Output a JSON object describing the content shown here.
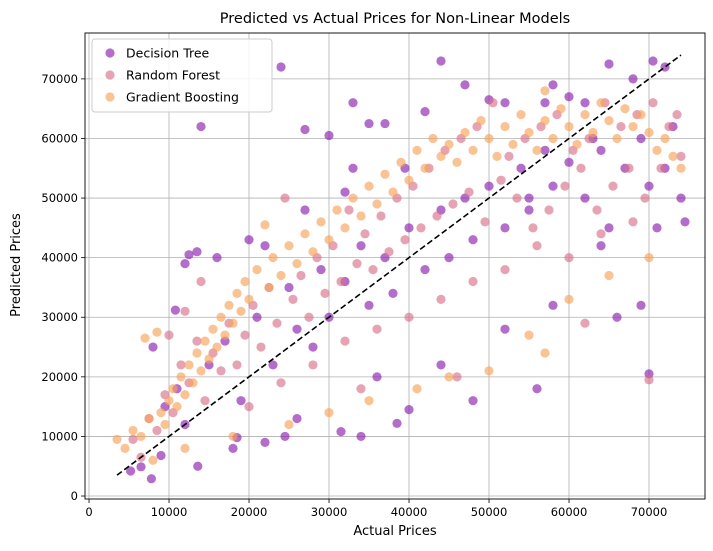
{
  "chart_data": {
    "type": "scatter",
    "title": "Predicted vs Actual Prices for Non-Linear Models",
    "xlabel": "Actual Prices",
    "ylabel": "Predicted Prices",
    "xlim": [
      -500,
      77000
    ],
    "ylim": [
      -500,
      77700
    ],
    "xticks": [
      0,
      10000,
      20000,
      30000,
      40000,
      50000,
      60000,
      70000
    ],
    "yticks": [
      0,
      10000,
      20000,
      30000,
      40000,
      50000,
      60000,
      70000
    ],
    "grid": true,
    "legend_position": "top-left",
    "reference_line": {
      "style": "dashed",
      "color": "#000000",
      "x": [
        3500,
        74000
      ],
      "y": [
        3500,
        74000
      ]
    },
    "series": [
      {
        "name": "Decision Tree",
        "color": "#8b1fad",
        "points": [
          [
            5200,
            4200
          ],
          [
            6500,
            4900
          ],
          [
            7800,
            2900
          ],
          [
            9000,
            6800
          ],
          [
            10800,
            31200
          ],
          [
            12000,
            39000
          ],
          [
            13600,
            5000
          ],
          [
            14000,
            62000
          ],
          [
            12500,
            40500
          ],
          [
            13500,
            41000
          ],
          [
            18500,
            9800
          ],
          [
            20000,
            43000
          ],
          [
            22000,
            9000
          ],
          [
            24000,
            72000
          ],
          [
            24500,
            10000
          ],
          [
            27000,
            61500
          ],
          [
            30000,
            60500
          ],
          [
            31500,
            10800
          ],
          [
            32000,
            51000
          ],
          [
            33000,
            66000
          ],
          [
            34000,
            10000
          ],
          [
            35000,
            62500
          ],
          [
            37000,
            62500
          ],
          [
            38500,
            12200
          ],
          [
            39500,
            55000
          ],
          [
            40000,
            14500
          ],
          [
            42000,
            64500
          ],
          [
            44000,
            73000
          ],
          [
            47000,
            69000
          ],
          [
            48000,
            16000
          ],
          [
            50000,
            66500
          ],
          [
            52000,
            66000
          ],
          [
            55000,
            50000
          ],
          [
            56000,
            18000
          ],
          [
            57000,
            66000
          ],
          [
            58000,
            69000
          ],
          [
            60000,
            67000
          ],
          [
            62000,
            66000
          ],
          [
            63000,
            60000
          ],
          [
            65000,
            72500
          ],
          [
            66000,
            30000
          ],
          [
            68000,
            70000
          ],
          [
            69000,
            32000
          ],
          [
            70000,
            20500
          ],
          [
            70500,
            73000
          ],
          [
            71000,
            45000
          ],
          [
            72000,
            72000
          ],
          [
            74000,
            50000
          ],
          [
            74500,
            46000
          ],
          [
            9500,
            15000
          ],
          [
            11000,
            18000
          ],
          [
            12000,
            12000
          ],
          [
            15000,
            22000
          ],
          [
            17000,
            26000
          ],
          [
            19000,
            16000
          ],
          [
            21000,
            30000
          ],
          [
            23000,
            22000
          ],
          [
            25000,
            35000
          ],
          [
            26000,
            28000
          ],
          [
            28000,
            25000
          ],
          [
            29000,
            38000
          ],
          [
            30000,
            30000
          ],
          [
            32000,
            36000
          ],
          [
            34000,
            42000
          ],
          [
            35000,
            32000
          ],
          [
            37000,
            40000
          ],
          [
            38000,
            34000
          ],
          [
            40000,
            45000
          ],
          [
            42000,
            38000
          ],
          [
            44000,
            48000
          ],
          [
            45000,
            40000
          ],
          [
            47000,
            50000
          ],
          [
            48000,
            43000
          ],
          [
            50000,
            52000
          ],
          [
            52000,
            45000
          ],
          [
            54000,
            55000
          ],
          [
            55000,
            48000
          ],
          [
            57000,
            58000
          ],
          [
            58000,
            52000
          ],
          [
            60000,
            56000
          ],
          [
            62000,
            50000
          ],
          [
            64000,
            58000
          ],
          [
            65000,
            45000
          ],
          [
            67000,
            55000
          ],
          [
            69000,
            60000
          ],
          [
            70000,
            52000
          ],
          [
            72000,
            55000
          ],
          [
            73000,
            62000
          ],
          [
            8000,
            25000
          ],
          [
            16000,
            40000
          ],
          [
            22000,
            42000
          ],
          [
            27000,
            48000
          ],
          [
            33000,
            55000
          ],
          [
            18000,
            8000
          ],
          [
            26000,
            13000
          ],
          [
            36000,
            20000
          ],
          [
            44000,
            22000
          ],
          [
            52000,
            28000
          ],
          [
            58000,
            32000
          ],
          [
            64000,
            42000
          ]
        ]
      },
      {
        "name": "Random Forest",
        "color": "#d9728b",
        "points": [
          [
            5500,
            9500
          ],
          [
            6500,
            6500
          ],
          [
            7500,
            13000
          ],
          [
            8500,
            11000
          ],
          [
            9500,
            17000
          ],
          [
            10500,
            14000
          ],
          [
            11500,
            22000
          ],
          [
            12500,
            19000
          ],
          [
            13500,
            26000
          ],
          [
            14500,
            16000
          ],
          [
            15500,
            24000
          ],
          [
            16500,
            21000
          ],
          [
            17500,
            29000
          ],
          [
            18500,
            22000
          ],
          [
            19500,
            27000
          ],
          [
            20500,
            32000
          ],
          [
            21500,
            25000
          ],
          [
            22500,
            35000
          ],
          [
            23500,
            29000
          ],
          [
            24500,
            50000
          ],
          [
            25500,
            33000
          ],
          [
            26500,
            37000
          ],
          [
            27500,
            30000
          ],
          [
            28500,
            40000
          ],
          [
            29500,
            34000
          ],
          [
            30500,
            42000
          ],
          [
            31500,
            36000
          ],
          [
            32500,
            48000
          ],
          [
            33500,
            39000
          ],
          [
            34500,
            44000
          ],
          [
            35500,
            38000
          ],
          [
            36500,
            47000
          ],
          [
            37500,
            41000
          ],
          [
            38500,
            50000
          ],
          [
            39500,
            43000
          ],
          [
            40500,
            52000
          ],
          [
            41500,
            45000
          ],
          [
            42500,
            55000
          ],
          [
            43500,
            47000
          ],
          [
            44500,
            58000
          ],
          [
            45500,
            49000
          ],
          [
            46500,
            60000
          ],
          [
            47500,
            51000
          ],
          [
            48500,
            62000
          ],
          [
            49500,
            46000
          ],
          [
            50500,
            66000
          ],
          [
            51500,
            53000
          ],
          [
            52500,
            57000
          ],
          [
            53500,
            50000
          ],
          [
            54500,
            60000
          ],
          [
            55500,
            45000
          ],
          [
            56500,
            62000
          ],
          [
            57500,
            48000
          ],
          [
            58500,
            64000
          ],
          [
            59500,
            52000
          ],
          [
            60500,
            58000
          ],
          [
            61500,
            55000
          ],
          [
            62500,
            60000
          ],
          [
            63500,
            48000
          ],
          [
            64500,
            66000
          ],
          [
            65500,
            52000
          ],
          [
            66500,
            62000
          ],
          [
            67500,
            55000
          ],
          [
            68500,
            64000
          ],
          [
            69500,
            50000
          ],
          [
            70500,
            66000
          ],
          [
            71500,
            55000
          ],
          [
            72500,
            62000
          ],
          [
            73500,
            64000
          ],
          [
            74000,
            57000
          ],
          [
            20000,
            15000
          ],
          [
            24000,
            19000
          ],
          [
            28000,
            22000
          ],
          [
            32000,
            26000
          ],
          [
            36000,
            28000
          ],
          [
            40000,
            30000
          ],
          [
            44000,
            33000
          ],
          [
            48000,
            36000
          ],
          [
            52000,
            38000
          ],
          [
            56000,
            42000
          ],
          [
            60000,
            40000
          ],
          [
            64000,
            44000
          ],
          [
            68000,
            46000
          ],
          [
            70000,
            19500
          ],
          [
            62000,
            29000
          ],
          [
            46000,
            20000
          ],
          [
            34000,
            18000
          ],
          [
            14000,
            36000
          ],
          [
            12000,
            31000
          ],
          [
            10000,
            27000
          ]
        ]
      },
      {
        "name": "Gradient Boosting",
        "color": "#f7a35b",
        "points": [
          [
            3500,
            9500
          ],
          [
            4500,
            8000
          ],
          [
            5500,
            11000
          ],
          [
            6500,
            10000
          ],
          [
            7000,
            26500
          ],
          [
            7500,
            13000
          ],
          [
            8500,
            27500
          ],
          [
            9000,
            14000
          ],
          [
            9500,
            12000
          ],
          [
            10000,
            16000
          ],
          [
            10500,
            18000
          ],
          [
            11000,
            15000
          ],
          [
            11500,
            20000
          ],
          [
            12000,
            17000
          ],
          [
            12500,
            22000
          ],
          [
            13000,
            19000
          ],
          [
            13500,
            24000
          ],
          [
            14000,
            21000
          ],
          [
            14500,
            26000
          ],
          [
            15000,
            23000
          ],
          [
            15500,
            28000
          ],
          [
            16000,
            25000
          ],
          [
            16500,
            30000
          ],
          [
            17000,
            27000
          ],
          [
            17500,
            32000
          ],
          [
            18000,
            29000
          ],
          [
            18500,
            34000
          ],
          [
            19000,
            31000
          ],
          [
            19500,
            36000
          ],
          [
            20000,
            33000
          ],
          [
            21000,
            38000
          ],
          [
            22000,
            45500
          ],
          [
            22500,
            35000
          ],
          [
            23000,
            40000
          ],
          [
            24000,
            37000
          ],
          [
            25000,
            42000
          ],
          [
            26000,
            39000
          ],
          [
            27000,
            44000
          ],
          [
            28000,
            41000
          ],
          [
            29000,
            46000
          ],
          [
            30000,
            43000
          ],
          [
            31000,
            48000
          ],
          [
            32000,
            45000
          ],
          [
            33000,
            50000
          ],
          [
            34000,
            47000
          ],
          [
            35000,
            52000
          ],
          [
            36000,
            49000
          ],
          [
            37000,
            54000
          ],
          [
            38000,
            51000
          ],
          [
            39000,
            56000
          ],
          [
            40000,
            53000
          ],
          [
            41000,
            58000
          ],
          [
            42000,
            55000
          ],
          [
            43000,
            60000
          ],
          [
            44000,
            57000
          ],
          [
            45000,
            59000
          ],
          [
            46000,
            56000
          ],
          [
            47000,
            61000
          ],
          [
            48000,
            58000
          ],
          [
            49000,
            63000
          ],
          [
            50000,
            60000
          ],
          [
            51000,
            57000
          ],
          [
            52000,
            62000
          ],
          [
            53000,
            59000
          ],
          [
            54000,
            64000
          ],
          [
            55000,
            61000
          ],
          [
            56000,
            58000
          ],
          [
            57000,
            63000
          ],
          [
            58000,
            60000
          ],
          [
            59000,
            65000
          ],
          [
            60000,
            62000
          ],
          [
            61000,
            59000
          ],
          [
            62000,
            64000
          ],
          [
            63000,
            61000
          ],
          [
            64000,
            66000
          ],
          [
            65000,
            63000
          ],
          [
            66000,
            60000
          ],
          [
            67000,
            65000
          ],
          [
            68000,
            62000
          ],
          [
            69000,
            64000
          ],
          [
            70000,
            61000
          ],
          [
            71000,
            58000
          ],
          [
            72000,
            60000
          ],
          [
            73000,
            57000
          ],
          [
            74000,
            55000
          ],
          [
            57000,
            68000
          ],
          [
            50000,
            21000
          ],
          [
            57000,
            24000
          ],
          [
            41000,
            18000
          ],
          [
            25000,
            12000
          ],
          [
            30000,
            14000
          ],
          [
            35000,
            16000
          ],
          [
            45000,
            20000
          ],
          [
            55000,
            27000
          ],
          [
            60000,
            33000
          ],
          [
            65000,
            37000
          ],
          [
            70000,
            40000
          ],
          [
            18000,
            10000
          ],
          [
            12000,
            8000
          ],
          [
            8000,
            6000
          ]
        ]
      }
    ]
  }
}
